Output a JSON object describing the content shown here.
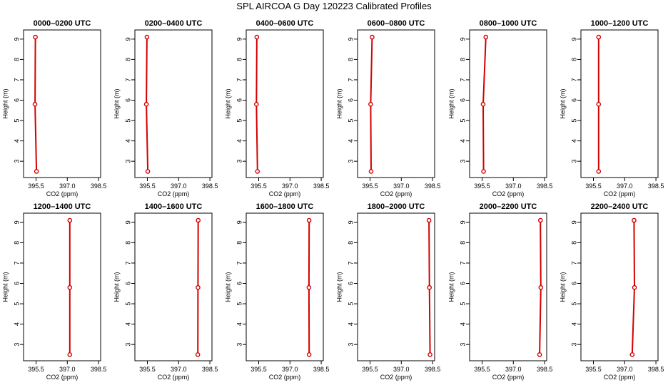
{
  "figure": {
    "title": "SPL AIRCOA G  Day 120223  Calibrated Profiles"
  },
  "chart_data": [
    {
      "type": "line",
      "title": "0000–0200 UTC",
      "xlabel": "CO2 (ppm)",
      "ylabel": "Height (m)",
      "xlim": [
        394.9,
        398.6
      ],
      "ylim": [
        2.2,
        9.45
      ],
      "x_ticks": [
        395.5,
        397.0,
        398.5
      ],
      "y_ticks": [
        3,
        4,
        5,
        6,
        7,
        8,
        9
      ],
      "series": [
        {
          "x": [
            395.52,
            395.45,
            395.47
          ],
          "y": [
            2.5,
            5.8,
            9.1
          ]
        }
      ]
    },
    {
      "type": "line",
      "title": "0200–0400 UTC",
      "xlabel": "CO2 (ppm)",
      "ylabel": "Height (m)",
      "xlim": [
        394.9,
        398.6
      ],
      "ylim": [
        2.2,
        9.45
      ],
      "x_ticks": [
        395.5,
        397.0,
        398.5
      ],
      "y_ticks": [
        3,
        4,
        5,
        6,
        7,
        8,
        9
      ],
      "series": [
        {
          "x": [
            395.52,
            395.45,
            395.48
          ],
          "y": [
            2.5,
            5.8,
            9.1
          ]
        }
      ]
    },
    {
      "type": "line",
      "title": "0400–0600 UTC",
      "xlabel": "CO2 (ppm)",
      "ylabel": "Height (m)",
      "xlim": [
        394.9,
        398.6
      ],
      "ylim": [
        2.2,
        9.45
      ],
      "x_ticks": [
        395.5,
        397.0,
        398.5
      ],
      "y_ticks": [
        3,
        4,
        5,
        6,
        7,
        8,
        9
      ],
      "series": [
        {
          "x": [
            395.44,
            395.39,
            395.41
          ],
          "y": [
            2.5,
            5.8,
            9.1
          ]
        }
      ]
    },
    {
      "type": "line",
      "title": "0600–0800 UTC",
      "xlabel": "CO2 (ppm)",
      "ylabel": "Height (m)",
      "xlim": [
        394.9,
        398.6
      ],
      "ylim": [
        2.2,
        9.45
      ],
      "x_ticks": [
        395.5,
        397.0,
        398.5
      ],
      "y_ticks": [
        3,
        4,
        5,
        6,
        7,
        8,
        9
      ],
      "series": [
        {
          "x": [
            395.55,
            395.53,
            395.6
          ],
          "y": [
            2.5,
            5.8,
            9.1
          ]
        }
      ]
    },
    {
      "type": "line",
      "title": "0800–1000 UTC",
      "xlabel": "CO2 (ppm)",
      "ylabel": "Height (m)",
      "xlim": [
        394.9,
        398.6
      ],
      "ylim": [
        2.2,
        9.45
      ],
      "x_ticks": [
        395.5,
        397.0,
        398.5
      ],
      "y_ticks": [
        3,
        4,
        5,
        6,
        7,
        8,
        9
      ],
      "series": [
        {
          "x": [
            395.57,
            395.55,
            395.68
          ],
          "y": [
            2.5,
            5.8,
            9.1
          ]
        }
      ]
    },
    {
      "type": "line",
      "title": "1000–1200 UTC",
      "xlabel": "CO2 (ppm)",
      "ylabel": "Height (m)",
      "xlim": [
        394.9,
        398.6
      ],
      "ylim": [
        2.2,
        9.45
      ],
      "x_ticks": [
        395.5,
        397.0,
        398.5
      ],
      "y_ticks": [
        3,
        4,
        5,
        6,
        7,
        8,
        9
      ],
      "series": [
        {
          "x": [
            395.75,
            395.75,
            395.75
          ],
          "y": [
            2.5,
            5.8,
            9.1
          ]
        }
      ]
    },
    {
      "type": "line",
      "title": "1200–1400 UTC",
      "xlabel": "CO2 (ppm)",
      "ylabel": "Height (m)",
      "xlim": [
        394.9,
        398.6
      ],
      "ylim": [
        2.2,
        9.45
      ],
      "x_ticks": [
        395.5,
        397.0,
        398.5
      ],
      "y_ticks": [
        3,
        4,
        5,
        6,
        7,
        8,
        9
      ],
      "series": [
        {
          "x": [
            397.12,
            397.12,
            397.12
          ],
          "y": [
            2.5,
            5.8,
            9.1
          ]
        }
      ]
    },
    {
      "type": "line",
      "title": "1400–1600 UTC",
      "xlabel": "CO2 (ppm)",
      "ylabel": "Height (m)",
      "xlim": [
        394.9,
        398.6
      ],
      "ylim": [
        2.2,
        9.45
      ],
      "x_ticks": [
        395.5,
        397.0,
        398.5
      ],
      "y_ticks": [
        3,
        4,
        5,
        6,
        7,
        8,
        9
      ],
      "series": [
        {
          "x": [
            397.92,
            397.93,
            397.94
          ],
          "y": [
            2.5,
            5.8,
            9.1
          ]
        }
      ]
    },
    {
      "type": "line",
      "title": "1600–1800 UTC",
      "xlabel": "CO2 (ppm)",
      "ylabel": "Height (m)",
      "xlim": [
        394.9,
        398.6
      ],
      "ylim": [
        2.2,
        9.45
      ],
      "x_ticks": [
        395.5,
        397.0,
        398.5
      ],
      "y_ticks": [
        3,
        4,
        5,
        6,
        7,
        8,
        9
      ],
      "series": [
        {
          "x": [
            397.92,
            397.91,
            397.92
          ],
          "y": [
            2.5,
            5.8,
            9.1
          ]
        }
      ]
    },
    {
      "type": "line",
      "title": "1800–2000 UTC",
      "xlabel": "CO2 (ppm)",
      "ylabel": "Height (m)",
      "xlim": [
        394.9,
        398.6
      ],
      "ylim": [
        2.2,
        9.45
      ],
      "x_ticks": [
        395.5,
        397.0,
        398.5
      ],
      "y_ticks": [
        3,
        4,
        5,
        6,
        7,
        8,
        9
      ],
      "series": [
        {
          "x": [
            398.38,
            398.35,
            398.33
          ],
          "y": [
            2.5,
            5.8,
            9.1
          ]
        }
      ]
    },
    {
      "type": "line",
      "title": "2000–2200 UTC",
      "xlabel": "CO2 (ppm)",
      "ylabel": "Height (m)",
      "xlim": [
        394.9,
        398.6
      ],
      "ylim": [
        2.2,
        9.45
      ],
      "x_ticks": [
        395.5,
        397.0,
        398.5
      ],
      "y_ticks": [
        3,
        4,
        5,
        6,
        7,
        8,
        9
      ],
      "series": [
        {
          "x": [
            398.26,
            398.32,
            398.3
          ],
          "y": [
            2.5,
            5.8,
            9.1
          ]
        }
      ]
    },
    {
      "type": "line",
      "title": "2200–2400 UTC",
      "xlabel": "CO2 (ppm)",
      "ylabel": "Height (m)",
      "xlim": [
        394.9,
        398.6
      ],
      "ylim": [
        2.2,
        9.45
      ],
      "x_ticks": [
        395.5,
        397.0,
        398.5
      ],
      "y_ticks": [
        3,
        4,
        5,
        6,
        7,
        8,
        9
      ],
      "series": [
        {
          "x": [
            397.36,
            397.47,
            397.45
          ],
          "y": [
            2.5,
            5.8,
            9.1
          ]
        }
      ]
    }
  ]
}
